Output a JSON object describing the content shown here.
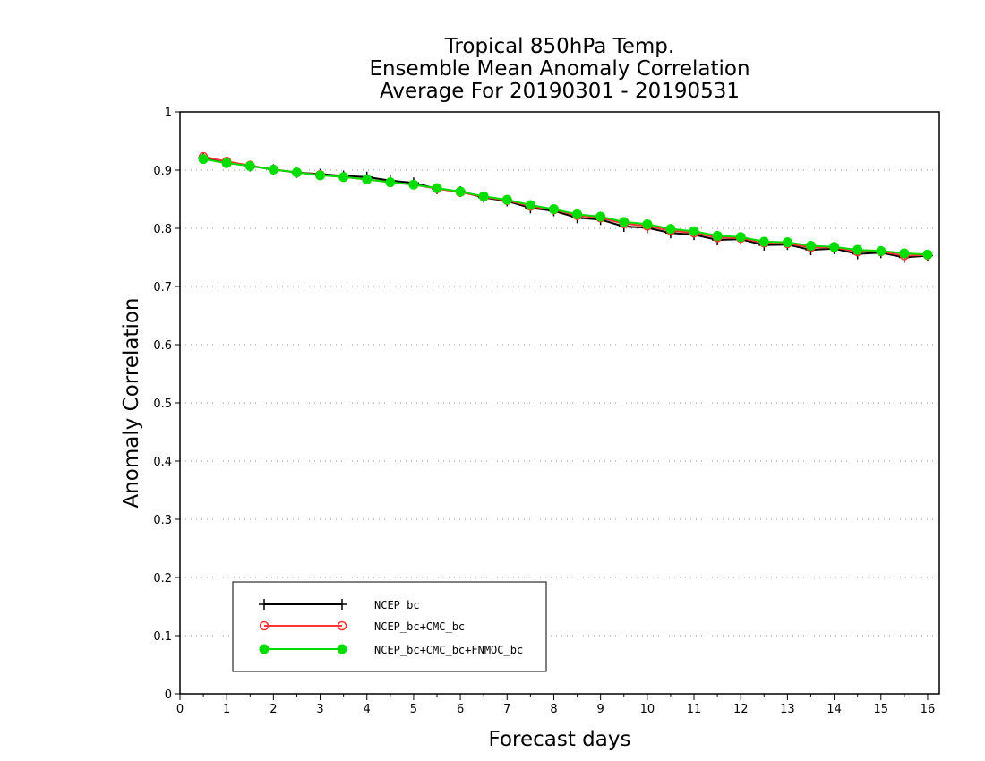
{
  "chart_data": {
    "type": "line",
    "title": [
      "Tropical 850hPa Temp.",
      "Ensemble Mean Anomaly Correlation",
      "Average For 20190301 - 20190531"
    ],
    "xlabel": "Forecast days",
    "ylabel": "Anomaly Correlation",
    "xlim": [
      0,
      16.25
    ],
    "ylim": [
      0,
      1
    ],
    "xticks": [
      "0",
      "1",
      "2",
      "3",
      "4",
      "5",
      "6",
      "7",
      "8",
      "9",
      "10",
      "11",
      "12",
      "13",
      "14",
      "15",
      "16"
    ],
    "yticks": [
      "0",
      "0.1",
      "0.2",
      "0.3",
      "0.4",
      "0.5",
      "0.6",
      "0.7",
      "0.8",
      "0.9",
      "1"
    ],
    "grid": "horizontal-dotted",
    "legend_position": "bottom-left",
    "x": [
      0.5,
      1,
      1.5,
      2,
      2.5,
      3,
      3.5,
      4,
      4.5,
      5,
      5.5,
      6,
      6.5,
      7,
      7.5,
      8,
      8.5,
      9,
      9.5,
      10,
      10.5,
      11,
      11.5,
      12,
      12.5,
      13,
      13.5,
      14,
      14.5,
      15,
      15.5,
      16
    ],
    "series": [
      {
        "name": "NCEP_bc",
        "color": "#000000",
        "marker": "plus",
        "values": [
          0.921,
          0.913,
          0.907,
          0.901,
          0.896,
          0.893,
          0.89,
          0.888,
          0.882,
          0.878,
          0.868,
          0.863,
          0.853,
          0.847,
          0.835,
          0.83,
          0.818,
          0.815,
          0.803,
          0.801,
          0.792,
          0.789,
          0.78,
          0.781,
          0.771,
          0.772,
          0.763,
          0.765,
          0.756,
          0.758,
          0.75,
          0.753
        ]
      },
      {
        "name": "NCEP_bc+CMC_bc",
        "color": "#ff3333",
        "marker": "open-circle",
        "values": [
          0.923,
          0.915,
          0.908,
          0.901,
          0.896,
          0.892,
          0.888,
          0.884,
          0.879,
          0.875,
          0.868,
          0.862,
          0.854,
          0.848,
          0.838,
          0.832,
          0.822,
          0.818,
          0.808,
          0.804,
          0.796,
          0.792,
          0.784,
          0.783,
          0.775,
          0.774,
          0.767,
          0.767,
          0.76,
          0.76,
          0.753,
          0.754
        ]
      },
      {
        "name": "NCEP_bc+CMC_bc+FNMOC_bc",
        "color": "#00dd00",
        "marker": "filled-circle",
        "values": [
          0.919,
          0.912,
          0.907,
          0.901,
          0.896,
          0.891,
          0.888,
          0.884,
          0.879,
          0.875,
          0.869,
          0.863,
          0.855,
          0.849,
          0.84,
          0.833,
          0.824,
          0.82,
          0.811,
          0.807,
          0.799,
          0.795,
          0.787,
          0.785,
          0.777,
          0.776,
          0.77,
          0.768,
          0.763,
          0.761,
          0.757,
          0.755
        ]
      }
    ]
  }
}
